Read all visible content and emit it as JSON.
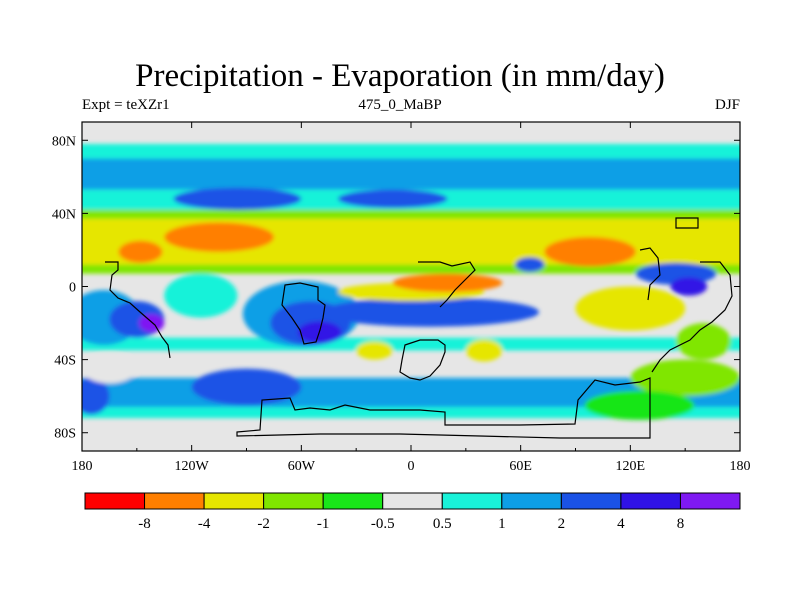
{
  "title": "Precipitation - Evaporation (in mm/day)",
  "left_label": "Expt = teXZr1",
  "center_label": "475_0_MaBP",
  "right_label": "DJF",
  "map": {
    "projection": "cylindrical-equidistant",
    "lon_range": [
      -180,
      180
    ],
    "lat_range": [
      -90,
      90
    ],
    "x_ticks": [
      {
        "value": -180,
        "label": "180"
      },
      {
        "value": -120,
        "label": "120W"
      },
      {
        "value": -60,
        "label": "60W"
      },
      {
        "value": 0,
        "label": "0"
      },
      {
        "value": 60,
        "label": "60E"
      },
      {
        "value": 120,
        "label": "120E"
      },
      {
        "value": 180,
        "label": "180"
      }
    ],
    "y_ticks": [
      {
        "value": 80,
        "label": "80N"
      },
      {
        "value": 40,
        "label": "40N"
      },
      {
        "value": 0,
        "label": "0"
      },
      {
        "value": -40,
        "label": "40S"
      },
      {
        "value": -80,
        "label": "80S"
      }
    ]
  },
  "colorbar": {
    "colors": [
      "#ff0000",
      "#ff7f00",
      "#e6e600",
      "#80e600",
      "#19e619",
      "#e6e6e6",
      "#19f2d9",
      "#0d9fe6",
      "#1a52e6",
      "#3012e6",
      "#7f19f2"
    ],
    "labels": [
      "-8",
      "-4",
      "-2",
      "-1",
      "-0.5",
      "0.5",
      "1",
      "2",
      "4",
      "8"
    ]
  },
  "field": {
    "background": "#e6e6e6",
    "bands": [
      {
        "lat": [
          78,
          70
        ],
        "color": "#19f2d9"
      },
      {
        "lat": [
          70,
          53
        ],
        "color": "#0d9fe6"
      },
      {
        "lat": [
          53,
          42
        ],
        "color": "#19f2d9"
      },
      {
        "lat": [
          42,
          37
        ],
        "color": "#80e600"
      },
      {
        "lat": [
          37,
          12
        ],
        "color": "#e6e600"
      },
      {
        "lat": [
          12,
          7
        ],
        "color": "#80e600"
      },
      {
        "lat": [
          -28,
          -35
        ],
        "color": "#19f2d9"
      },
      {
        "lat": [
          -50,
          -66
        ],
        "color": "#0d9fe6"
      },
      {
        "lat": [
          -66,
          -72
        ],
        "color": "#19f2d9"
      }
    ],
    "blobs": [
      {
        "lon": -168,
        "lat": -17,
        "rx": 20,
        "ry": 15,
        "color": "#0d9fe6"
      },
      {
        "lon": -150,
        "lat": -18,
        "rx": 15,
        "ry": 10,
        "color": "#1a52e6"
      },
      {
        "lon": -142,
        "lat": -20,
        "rx": 7,
        "ry": 5,
        "color": "#7f19f2"
      },
      {
        "lon": -115,
        "lat": -5,
        "rx": 20,
        "ry": 12,
        "color": "#19f2d9"
      },
      {
        "lon": -60,
        "lat": -15,
        "rx": 32,
        "ry": 18,
        "color": "#0d9fe6"
      },
      {
        "lon": -55,
        "lat": -20,
        "rx": 22,
        "ry": 12,
        "color": "#1a52e6"
      },
      {
        "lon": -50,
        "lat": -25,
        "rx": 12,
        "ry": 6,
        "color": "#3012e6"
      },
      {
        "lon": 10,
        "lat": -14,
        "rx": 60,
        "ry": 8,
        "color": "#1a52e6"
      },
      {
        "lon": 0,
        "lat": -3,
        "rx": 40,
        "ry": 5,
        "color": "#e6e600"
      },
      {
        "lon": 20,
        "lat": 2,
        "rx": 30,
        "ry": 5,
        "color": "#ff7f00"
      },
      {
        "lon": -105,
        "lat": 27,
        "rx": 30,
        "ry": 8,
        "color": "#ff7f00"
      },
      {
        "lon": -148,
        "lat": 19,
        "rx": 12,
        "ry": 6,
        "color": "#ff7f00"
      },
      {
        "lon": 98,
        "lat": 19,
        "rx": 25,
        "ry": 8,
        "color": "#ff7f00"
      },
      {
        "lon": 145,
        "lat": 7,
        "rx": 22,
        "ry": 6,
        "color": "#1a52e6"
      },
      {
        "lon": 152,
        "lat": 0,
        "rx": 10,
        "ry": 5,
        "color": "#3012e6"
      },
      {
        "lon": 120,
        "lat": -12,
        "rx": 30,
        "ry": 12,
        "color": "#e6e600"
      },
      {
        "lon": -95,
        "lat": 48,
        "rx": 35,
        "ry": 6,
        "color": "#1a52e6"
      },
      {
        "lon": -10,
        "lat": 48,
        "rx": 30,
        "ry": 5,
        "color": "#1a52e6"
      },
      {
        "lon": 65,
        "lat": 12,
        "rx": 8,
        "ry": 4,
        "color": "#1a52e6"
      },
      {
        "lon": -20,
        "lat": -35,
        "rx": 10,
        "ry": 5,
        "color": "#e6e600"
      },
      {
        "lon": 40,
        "lat": -35,
        "rx": 10,
        "ry": 6,
        "color": "#e6e600"
      },
      {
        "lon": -90,
        "lat": -55,
        "rx": 30,
        "ry": 10,
        "color": "#1a52e6"
      },
      {
        "lon": -175,
        "lat": -60,
        "rx": 10,
        "ry": 10,
        "color": "#1a52e6"
      },
      {
        "lon": 150,
        "lat": -50,
        "rx": 30,
        "ry": 10,
        "color": "#80e600"
      },
      {
        "lon": 125,
        "lat": -65,
        "rx": 30,
        "ry": 8,
        "color": "#19e619"
      },
      {
        "lon": 160,
        "lat": -30,
        "rx": 15,
        "ry": 10,
        "color": "#80e600"
      },
      {
        "lon": -165,
        "lat": -45,
        "rx": 15,
        "ry": 8,
        "color": "#e6e6e6"
      }
    ]
  }
}
